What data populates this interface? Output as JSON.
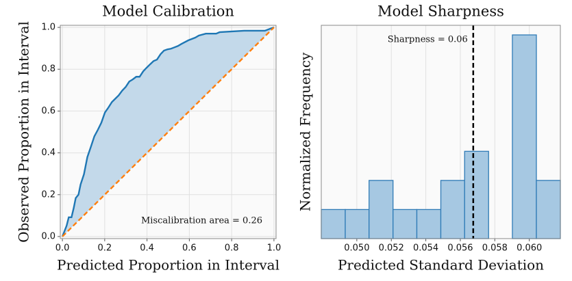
{
  "chart_data": [
    {
      "type": "line",
      "title": "Model Calibration",
      "xlabel": "Predicted Proportion in Interval",
      "ylabel": "Observed Proportion in Interval",
      "annotation": "Miscalibration area = 0.26",
      "xlim": [
        -0.01,
        1.01
      ],
      "ylim": [
        -0.01,
        1.01
      ],
      "xticks": [
        {
          "value": 0,
          "label": "0.0"
        },
        0.2,
        0.4,
        0.6,
        0.8,
        {
          "value": 1,
          "label": "1.0"
        }
      ],
      "yticks": [
        {
          "value": 0,
          "label": "0.0"
        },
        0.2,
        0.4,
        0.6,
        0.8,
        {
          "value": 1,
          "label": "1.0"
        }
      ],
      "grid": true,
      "fill_color": "#c3d9ea",
      "series": [
        {
          "color": "#1f77b4",
          "x": [
            0,
            0.02,
            0.03,
            0.043,
            0.053,
            0.063,
            0.076,
            0.086,
            0.102,
            0.118,
            0.135,
            0.151,
            0.168,
            0.184,
            0.201,
            0.217,
            0.234,
            0.25,
            0.266,
            0.283,
            0.299,
            0.316,
            0.332,
            0.349,
            0.365,
            0.382,
            0.398,
            0.414,
            0.431,
            0.447,
            0.464,
            0.48,
            0.497,
            0.513,
            0.546,
            0.563,
            0.595,
            0.628,
            0.645,
            0.678,
            0.727,
            0.743,
            0.859,
            0.957,
            0.98,
            1
          ],
          "values": [
            0,
            0.052,
            0.092,
            0.092,
            0.134,
            0.184,
            0.2,
            0.249,
            0.298,
            0.38,
            0.43,
            0.479,
            0.511,
            0.544,
            0.593,
            0.616,
            0.643,
            0.659,
            0.675,
            0.698,
            0.715,
            0.741,
            0.751,
            0.764,
            0.764,
            0.79,
            0.807,
            0.823,
            0.839,
            0.846,
            0.872,
            0.889,
            0.895,
            0.898,
            0.911,
            0.921,
            0.938,
            0.951,
            0.961,
            0.97,
            0.97,
            0.977,
            0.984,
            0.984,
            0.993,
            1
          ]
        },
        {
          "color": "#ff7f0e",
          "dashed": true,
          "x": [
            0,
            1
          ],
          "values": [
            0,
            1
          ]
        }
      ]
    },
    {
      "type": "histogram",
      "title": "Model Sharpness",
      "xlabel": "Predicted Standard Deviation",
      "ylabel": "Normalized Frequency",
      "annotation": "Sharpness = 0.06",
      "vline": 0.05675,
      "bins": [
        0.04794,
        0.04933,
        0.05071,
        0.0521,
        0.05348,
        0.05487,
        0.05625,
        0.05764,
        0.05902,
        0.06041,
        0.0618
      ],
      "values": [
        1,
        1,
        2,
        1,
        1,
        2,
        3,
        0,
        7,
        2
      ],
      "color": "#a6c8e2",
      "edge_color": "#2f7bb6",
      "xlim": [
        0.04794,
        0.0618
      ],
      "ylim": [
        0,
        7.33
      ],
      "xticks": [
        {
          "value": 0.05,
          "label": "0.050"
        },
        0.052,
        0.054,
        0.056,
        0.058,
        {
          "value": 0.06,
          "label": "0.060"
        }
      ],
      "grid": true
    }
  ]
}
